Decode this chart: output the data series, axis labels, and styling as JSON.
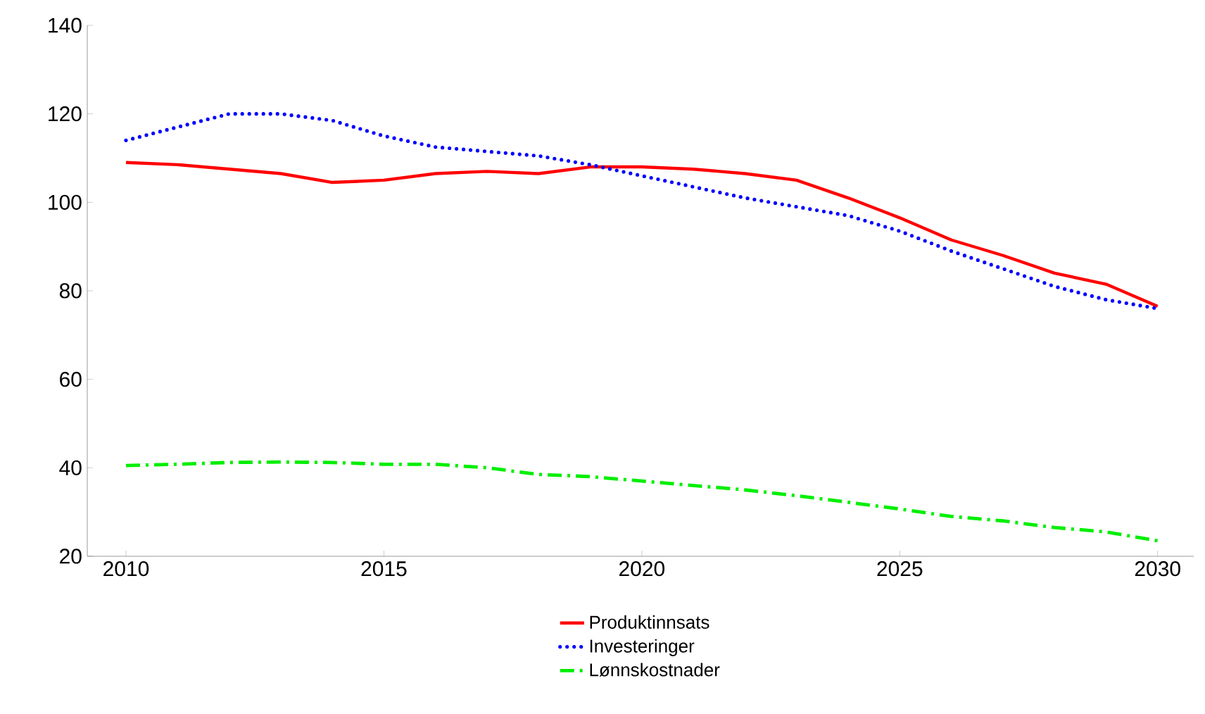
{
  "chart_data": {
    "type": "line",
    "x": [
      2010,
      2011,
      2012,
      2013,
      2014,
      2015,
      2016,
      2017,
      2018,
      2019,
      2020,
      2021,
      2022,
      2023,
      2024,
      2025,
      2026,
      2027,
      2028,
      2029,
      2030
    ],
    "xlim": [
      2009.25,
      2030.7
    ],
    "xticks": [
      2010,
      2015,
      2020,
      2025,
      2030
    ],
    "ylim": [
      20,
      140
    ],
    "yticks": [
      20,
      40,
      60,
      80,
      100,
      120,
      140
    ],
    "grid": false,
    "legend": "bottom",
    "series": [
      {
        "name": "Produktinnsats",
        "color": "#ff0000",
        "line_style": "solid",
        "values": [
          109,
          108.5,
          107.5,
          106.5,
          104.5,
          105,
          106.5,
          107,
          106.5,
          108,
          108,
          107.5,
          106.5,
          105,
          101,
          96.5,
          91.5,
          88,
          84,
          81.5,
          76.5
        ]
      },
      {
        "name": "Investeringer",
        "color": "#0000ff",
        "line_style": "dotted",
        "values": [
          114,
          117,
          120,
          120,
          118.5,
          115,
          112.5,
          111.5,
          110.5,
          108.5,
          106,
          103.5,
          101,
          99,
          97,
          93.5,
          89,
          85,
          81,
          78,
          76
        ]
      },
      {
        "name": "Lønnskostnader",
        "color": "#00ee00",
        "line_style": "dashdot",
        "values": [
          40.5,
          40.8,
          41.2,
          41.3,
          41.2,
          40.8,
          40.8,
          40,
          38.5,
          38,
          37,
          36,
          35,
          33.7,
          32.2,
          30.7,
          29,
          28,
          26.5,
          25.5,
          23.5
        ]
      }
    ]
  }
}
